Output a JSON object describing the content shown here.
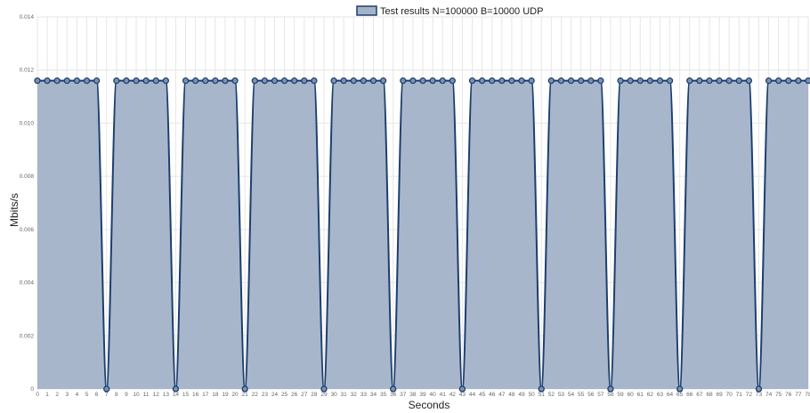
{
  "chart_data": {
    "type": "area",
    "legend": {
      "label": "Test results N=100000 B=10000 UDP",
      "position": "top-center"
    },
    "xlabel": "Seconds",
    "ylabel": "Mbits/s",
    "ylim": [
      0,
      0.014
    ],
    "yticks": [
      "0",
      "0.002",
      "0.004",
      "0.006",
      "0.008",
      "0.010",
      "0.012",
      "0.014"
    ],
    "grid": true,
    "colors": {
      "fill": "#a3b2c9",
      "line": "#1c3f6e",
      "point_fill": "#7d92b2",
      "grid": "#e6e6e6"
    },
    "x": [
      0,
      1,
      2,
      3,
      4,
      5,
      6,
      7,
      8,
      9,
      10,
      11,
      12,
      13,
      14,
      15,
      16,
      17,
      18,
      19,
      20,
      21,
      22,
      23,
      24,
      25,
      26,
      27,
      28,
      29,
      30,
      31,
      32,
      33,
      34,
      35,
      36,
      37,
      38,
      39,
      40,
      41,
      42,
      43,
      44,
      45,
      46,
      47,
      48,
      49,
      50,
      51,
      52,
      53,
      54,
      55,
      56,
      57,
      58,
      59,
      60,
      61,
      62,
      63,
      64,
      65,
      66,
      67,
      68,
      69,
      70,
      71,
      72,
      73,
      74,
      75,
      76,
      77,
      78
    ],
    "series": [
      {
        "name": "Test results N=100000 B=10000 UDP",
        "values": [
          0.0116,
          0.0116,
          0.0116,
          0.0116,
          0.0116,
          0.0116,
          0.0116,
          0,
          0.0116,
          0.0116,
          0.0116,
          0.0116,
          0.0116,
          0.0116,
          0,
          0.0116,
          0.0116,
          0.0116,
          0.0116,
          0.0116,
          0.0116,
          0,
          0.0116,
          0.0116,
          0.0116,
          0.0116,
          0.0116,
          0.0116,
          0.0116,
          0,
          0.0116,
          0.0116,
          0.0116,
          0.0116,
          0.0116,
          0.0116,
          0,
          0.0116,
          0.0116,
          0.0116,
          0.0116,
          0.0116,
          0.0116,
          0,
          0.0116,
          0.0116,
          0.0116,
          0.0116,
          0.0116,
          0.0116,
          0.0116,
          0,
          0.0116,
          0.0116,
          0.0116,
          0.0116,
          0.0116,
          0.0116,
          0,
          0.0116,
          0.0116,
          0.0116,
          0.0116,
          0.0116,
          0.0116,
          0,
          0.0116,
          0.0116,
          0.0116,
          0.0116,
          0.0116,
          0.0116,
          0.0116,
          0,
          0.0116,
          0.0116,
          0.0116,
          0.0116,
          0.0116
        ]
      }
    ]
  }
}
